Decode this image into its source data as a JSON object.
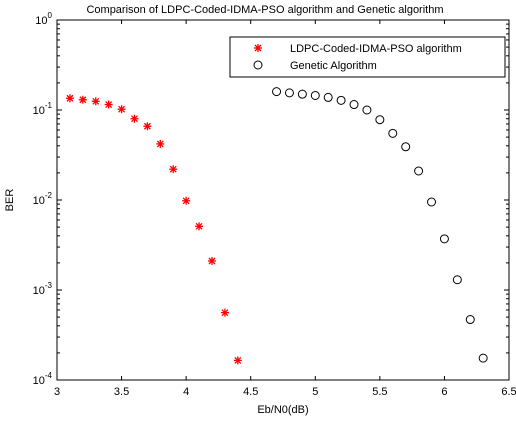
{
  "chart_data": {
    "type": "scatter",
    "title": "Comparison of LDPC-Coded-IDMA-PSO algorithm and Genetic algorithm",
    "xlabel": "Eb/N0(dB)",
    "ylabel": "BER",
    "xlim": [
      3,
      6.5
    ],
    "ylim": [
      0.0001,
      1
    ],
    "yscale": "log",
    "grid": false,
    "legend_position": "top-right",
    "xticks": [
      3,
      3.5,
      4,
      4.5,
      5,
      5.5,
      6,
      6.5
    ],
    "xtick_labels": [
      "3",
      "3.5",
      "4",
      "4.5",
      "5",
      "5.5",
      "6",
      "6.5"
    ],
    "yticks": [
      {
        "value": 0.0001,
        "base": "10",
        "exp": "-4"
      },
      {
        "value": 0.001,
        "base": "10",
        "exp": "-3"
      },
      {
        "value": 0.01,
        "base": "10",
        "exp": "-2"
      },
      {
        "value": 0.1,
        "base": "10",
        "exp": "-1"
      },
      {
        "value": 1,
        "base": "10",
        "exp": "0"
      }
    ],
    "series": [
      {
        "name": "LDPC-Coded-IDMA-PSO algorithm",
        "marker": "star",
        "color": "#ff0000",
        "x": [
          3.1,
          3.2,
          3.3,
          3.4,
          3.5,
          3.6,
          3.7,
          3.8,
          3.9,
          4.0,
          4.1,
          4.2,
          4.3,
          4.4
        ],
        "y": [
          0.135,
          0.13,
          0.125,
          0.115,
          0.102,
          0.08,
          0.066,
          0.042,
          0.022,
          0.0098,
          0.0051,
          0.0021,
          0.00056,
          0.000165
        ]
      },
      {
        "name": "Genetic Algorithm",
        "marker": "circle",
        "color": "#000000",
        "x": [
          4.7,
          4.8,
          4.9,
          5.0,
          5.1,
          5.2,
          5.3,
          5.4,
          5.5,
          5.6,
          5.7,
          5.8,
          5.9,
          6.0,
          6.1,
          6.2,
          6.3
        ],
        "y": [
          0.16,
          0.155,
          0.15,
          0.145,
          0.138,
          0.128,
          0.115,
          0.1,
          0.078,
          0.055,
          0.039,
          0.021,
          0.0095,
          0.0037,
          0.0013,
          0.00047,
          0.000175
        ]
      }
    ]
  }
}
